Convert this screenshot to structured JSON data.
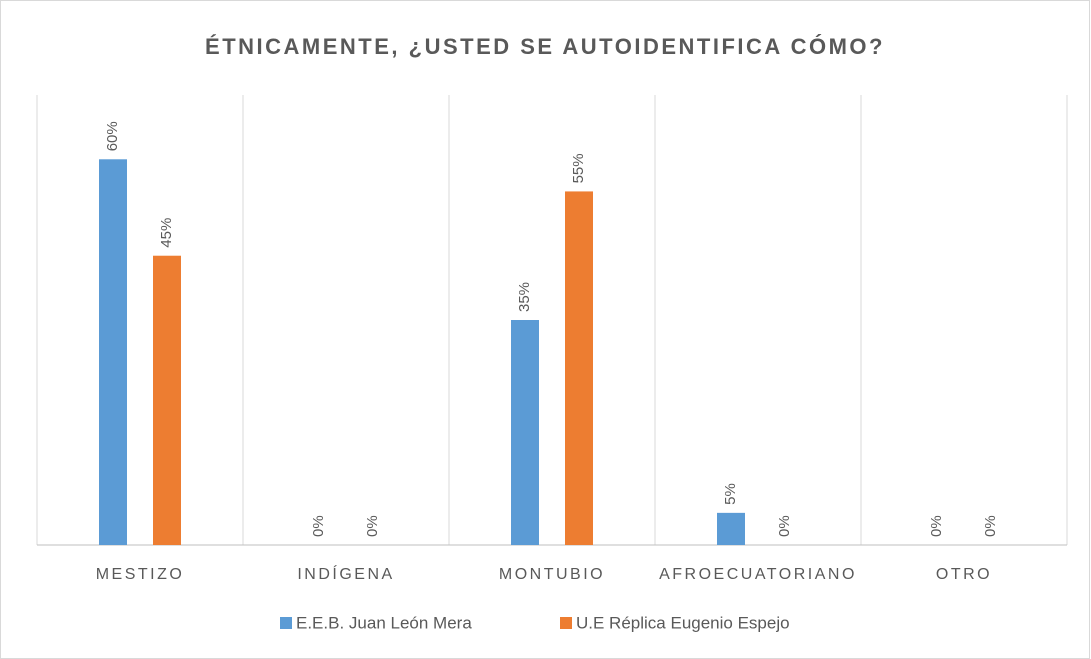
{
  "chart_data": {
    "type": "bar",
    "title": "ÉTNICAMENTE, ¿USTED SE AUTOIDENTIFICA CÓMO?",
    "categories": [
      "MESTIZO",
      "INDÍGENA",
      "MONTUBIO",
      "AFROECUATORIANO",
      "OTRO"
    ],
    "series": [
      {
        "name": "E.E.B. Juan León Mera",
        "color": "#5b9bd5",
        "values": [
          60,
          0,
          35,
          5,
          0
        ],
        "value_labels": [
          "60%",
          "0%",
          "35%",
          "5%",
          "0%"
        ]
      },
      {
        "name": "U.E Réplica Eugenio Espejo",
        "color": "#ed7d31",
        "values": [
          45,
          0,
          55,
          0,
          0
        ],
        "value_labels": [
          "45%",
          "0%",
          "55%",
          "0%",
          "0%"
        ]
      }
    ],
    "ylim": [
      0,
      70
    ],
    "legend": "bottom",
    "category_grid": true
  }
}
